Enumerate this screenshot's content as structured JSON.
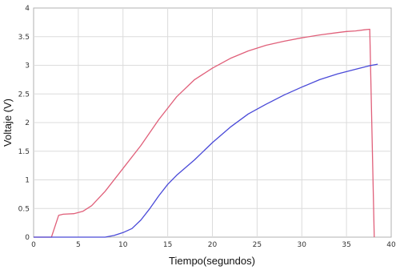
{
  "chart_data": {
    "type": "line",
    "title": "",
    "xlabel": "Tiempo(segundos)",
    "ylabel": "Voltaje (V)",
    "xlim": [
      0,
      40
    ],
    "ylim": [
      0,
      4
    ],
    "xticks": [
      0,
      5,
      10,
      15,
      20,
      25,
      30,
      35,
      40
    ],
    "yticks": [
      0,
      0.5,
      1,
      1.5,
      2,
      2.5,
      3,
      3.5,
      4
    ],
    "ytick_labels": [
      "0",
      "0.5",
      "1",
      "1.5",
      "2",
      "2.5",
      "3",
      "3.5",
      "4"
    ],
    "grid": true,
    "series": [
      {
        "color": "#e0607a",
        "x": [
          0,
          2.0,
          2.8,
          3.3,
          4.5,
          5.5,
          6.5,
          8,
          10,
          12,
          14,
          16,
          18,
          20,
          22,
          24,
          26,
          28,
          30,
          32,
          34,
          35,
          36,
          37,
          37.6,
          38.1
        ],
        "y": [
          0,
          0,
          0.38,
          0.4,
          0.41,
          0.45,
          0.55,
          0.8,
          1.2,
          1.6,
          2.05,
          2.45,
          2.75,
          2.95,
          3.12,
          3.25,
          3.35,
          3.42,
          3.48,
          3.53,
          3.57,
          3.59,
          3.6,
          3.62,
          3.63,
          0
        ]
      },
      {
        "color": "#4a4ad8",
        "x": [
          0,
          8,
          9,
          10,
          11,
          12,
          13,
          14,
          15,
          16,
          18,
          20,
          22,
          24,
          26,
          28,
          30,
          32,
          34,
          36,
          37.5,
          38.5
        ],
        "y": [
          0,
          0,
          0.03,
          0.08,
          0.15,
          0.3,
          0.5,
          0.72,
          0.92,
          1.08,
          1.35,
          1.65,
          1.92,
          2.15,
          2.32,
          2.48,
          2.62,
          2.75,
          2.85,
          2.93,
          2.99,
          3.02
        ]
      }
    ]
  }
}
